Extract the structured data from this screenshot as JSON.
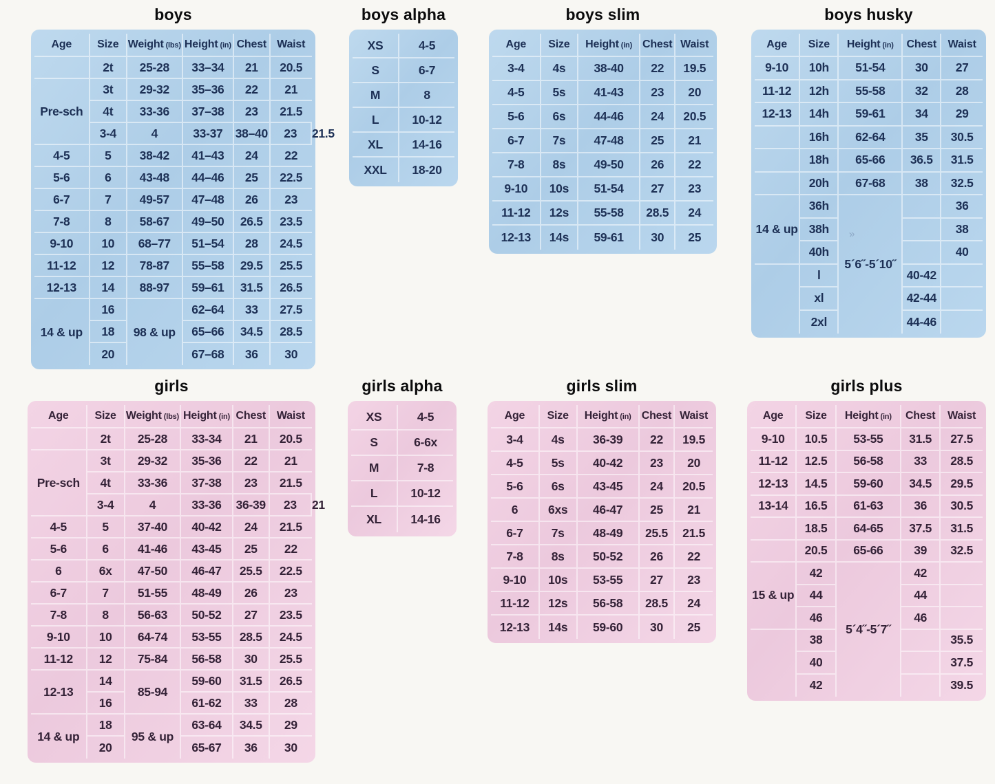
{
  "page": {
    "background": "#f8f7f3"
  },
  "colors": {
    "boys_fill": "#b4d2e9",
    "boys_text": "#1d3055",
    "girls_fill": "#efccdf",
    "girls_text": "#342237",
    "title_text": "#0b0b0c",
    "grid_line": "#ffffff"
  },
  "artifacts": {
    "pen_mark": "»"
  },
  "tables": {
    "boys": {
      "title": "boys",
      "theme": "boys",
      "columns": [
        {
          "label": "Age",
          "w": "20%"
        },
        {
          "label": "Size",
          "w": "13.5%"
        },
        {
          "label": "Weight",
          "unit": "(lbs)",
          "w": "20%"
        },
        {
          "label": "Height",
          "unit": "(in)",
          "w": "18.5%"
        },
        {
          "label": "Chest",
          "w": "13%"
        },
        {
          "label": "Waist",
          "w": "15%"
        }
      ],
      "rows": [
        [
          "",
          "2t",
          "25-28",
          "33–34",
          "21",
          "20.5"
        ],
        [
          {
            "t": "Pre-sch",
            "rs": 3
          },
          "3t",
          "29-32",
          "35–36",
          "22",
          "21"
        ],
        [
          "4t",
          "33-36",
          "37–38",
          "23",
          "21.5"
        ],
        [
          "3-4",
          "4",
          "33-37",
          "38–40",
          "23",
          "21.5"
        ],
        [
          "4-5",
          "5",
          "38-42",
          "41–43",
          "24",
          "22"
        ],
        [
          "5-6",
          "6",
          "43-48",
          "44–46",
          "25",
          "22.5"
        ],
        [
          "6-7",
          "7",
          "49-57",
          "47–48",
          "26",
          "23"
        ],
        [
          "7-8",
          "8",
          "58-67",
          "49–50",
          "26.5",
          "23.5"
        ],
        [
          "9-10",
          "10",
          "68–77",
          "51–54",
          "28",
          "24.5"
        ],
        [
          "11-12",
          "12",
          "78-87",
          "55–58",
          "29.5",
          "25.5"
        ],
        [
          "12-13",
          "14",
          "88-97",
          "59–61",
          "31.5",
          "26.5"
        ],
        [
          {
            "t": "14 & up",
            "rs": 3,
            "nbb": true
          },
          "16",
          {
            "t": "98 & up",
            "rs": 3,
            "nbb": true
          },
          "62–64",
          "33",
          "27.5"
        ],
        [
          "18",
          "65–66",
          "34.5",
          "28.5"
        ],
        [
          "20",
          "67–68",
          "36",
          "30"
        ]
      ]
    },
    "boys_alpha": {
      "title": "boys alpha",
      "theme": "boys",
      "columns": [
        {
          "w": "46%"
        },
        {
          "w": "54%"
        }
      ],
      "rows": [
        [
          "XS",
          "4-5"
        ],
        [
          "S",
          "6-7"
        ],
        [
          "M",
          "8"
        ],
        [
          "L",
          "10-12"
        ],
        [
          "XL",
          "14-16"
        ],
        [
          "XXL",
          "18-20"
        ]
      ]
    },
    "boys_slim": {
      "title": "boys slim",
      "theme": "boys",
      "columns": [
        {
          "label": "Age",
          "w": "22%"
        },
        {
          "label": "Size",
          "w": "17%"
        },
        {
          "label": "Height",
          "unit": "(in)",
          "w": "28%"
        },
        {
          "label": "Chest",
          "w": "16%"
        },
        {
          "label": "Waist",
          "w": "17%"
        }
      ],
      "rows": [
        [
          "3-4",
          "4s",
          "38-40",
          "22",
          "19.5"
        ],
        [
          "4-5",
          "5s",
          "41-43",
          "23",
          "20"
        ],
        [
          "5-6",
          "6s",
          "44-46",
          "24",
          "20.5"
        ],
        [
          "6-7",
          "7s",
          "47-48",
          "25",
          "21"
        ],
        [
          "7-8",
          "8s",
          "49-50",
          "26",
          "22"
        ],
        [
          "9-10",
          "10s",
          "51-54",
          "27",
          "23"
        ],
        [
          "11-12",
          "12s",
          "55-58",
          "28.5",
          "24"
        ],
        [
          "12-13",
          "14s",
          "59-61",
          "30",
          "25"
        ]
      ]
    },
    "boys_husky": {
      "title": "boys husky",
      "theme": "boys",
      "columns": [
        {
          "label": "Age",
          "w": "20%"
        },
        {
          "label": "Size",
          "w": "17%"
        },
        {
          "label": "Height",
          "unit": "(in)",
          "w": "28%"
        },
        {
          "label": "Chest",
          "w": "17%"
        },
        {
          "label": "Waist",
          "w": "18%"
        }
      ],
      "rows": [
        [
          "9-10",
          "10h",
          "51-54",
          "30",
          "27"
        ],
        [
          "11-12",
          "12h",
          "55-58",
          "32",
          "28"
        ],
        [
          "12-13",
          "14h",
          "59-61",
          "34",
          "29"
        ],
        [
          "",
          "16h",
          "62-64",
          "35",
          "30.5"
        ],
        [
          "",
          "18h",
          "65-66",
          "36.5",
          "31.5"
        ],
        [
          "",
          "20h",
          "67-68",
          "38",
          "32.5"
        ],
        [
          {
            "t": "14 & up",
            "rs": 3
          },
          "36h",
          {
            "t": "5´6˝-5´10˝",
            "rs": 6,
            "hs": true,
            "mark": true,
            "nbb": true
          },
          "",
          "36"
        ],
        [
          "38h",
          "",
          "38"
        ],
        [
          "40h",
          "",
          "40"
        ],
        [
          {
            "t": "",
            "rs": 3,
            "nbb": true
          },
          "l",
          "40-42",
          ""
        ],
        [
          "xl",
          "42-44",
          ""
        ],
        [
          "2xl",
          "44-46",
          ""
        ]
      ]
    },
    "girls": {
      "title": "girls",
      "theme": "girls",
      "columns": [
        {
          "label": "Age",
          "w": "20%"
        },
        {
          "label": "Size",
          "w": "13.5%"
        },
        {
          "label": "Weight",
          "unit": "(lbs)",
          "w": "20%"
        },
        {
          "label": "Height",
          "unit": "(in)",
          "w": "18.5%"
        },
        {
          "label": "Chest",
          "w": "13%"
        },
        {
          "label": "Waist",
          "w": "15%"
        }
      ],
      "rows": [
        [
          "",
          "2t",
          "25-28",
          "33-34",
          "21",
          "20.5"
        ],
        [
          {
            "t": "Pre-sch",
            "rs": 3
          },
          "3t",
          "29-32",
          "35-36",
          "22",
          "21"
        ],
        [
          "4t",
          "33-36",
          "37-38",
          "23",
          "21.5"
        ],
        [
          "3-4",
          "4",
          "33-36",
          "36-39",
          "23",
          "21"
        ],
        [
          "4-5",
          "5",
          "37-40",
          "40-42",
          "24",
          "21.5"
        ],
        [
          "5-6",
          "6",
          "41-46",
          "43-45",
          "25",
          "22"
        ],
        [
          "6",
          "6x",
          "47-50",
          "46-47",
          "25.5",
          "22.5"
        ],
        [
          "6-7",
          "7",
          "51-55",
          "48-49",
          "26",
          "23"
        ],
        [
          "7-8",
          "8",
          "56-63",
          "50-52",
          "27",
          "23.5"
        ],
        [
          "9-10",
          "10",
          "64-74",
          "53-55",
          "28.5",
          "24.5"
        ],
        [
          "11-12",
          "12",
          "75-84",
          "56-58",
          "30",
          "25.5"
        ],
        [
          {
            "t": "12-13",
            "rs": 2
          },
          "14",
          {
            "t": "85-94",
            "rs": 2
          },
          "59-60",
          "31.5",
          "26.5"
        ],
        [
          "16",
          "61-62",
          "33",
          "28"
        ],
        [
          {
            "t": "14 & up",
            "rs": 2,
            "nbb": true
          },
          "18",
          {
            "t": "95 & up",
            "rs": 2,
            "nbb": true
          },
          "63-64",
          "34.5",
          "29"
        ],
        [
          "20",
          "65-67",
          "36",
          "30"
        ]
      ]
    },
    "girls_alpha": {
      "title": "girls alpha",
      "theme": "girls",
      "columns": [
        {
          "w": "46%"
        },
        {
          "w": "54%"
        }
      ],
      "rows": [
        [
          "XS",
          "4-5"
        ],
        [
          "S",
          "6-6x"
        ],
        [
          "M",
          "7-8"
        ],
        [
          "L",
          "10-12"
        ],
        [
          "XL",
          "14-16"
        ]
      ]
    },
    "girls_slim": {
      "title": "girls slim",
      "theme": "girls",
      "columns": [
        {
          "label": "Age",
          "w": "22%"
        },
        {
          "label": "Size",
          "w": "17%"
        },
        {
          "label": "Height",
          "unit": "(in)",
          "w": "28%"
        },
        {
          "label": "Chest",
          "w": "16%"
        },
        {
          "label": "Waist",
          "w": "17%"
        }
      ],
      "rows": [
        [
          "3-4",
          "4s",
          "36-39",
          "22",
          "19.5"
        ],
        [
          "4-5",
          "5s",
          "40-42",
          "23",
          "20"
        ],
        [
          "5-6",
          "6s",
          "43-45",
          "24",
          "20.5"
        ],
        [
          "6",
          "6xs",
          "46-47",
          "25",
          "21"
        ],
        [
          "6-7",
          "7s",
          "48-49",
          "25.5",
          "21.5"
        ],
        [
          "7-8",
          "8s",
          "50-52",
          "26",
          "22"
        ],
        [
          "9-10",
          "10s",
          "53-55",
          "27",
          "23"
        ],
        [
          "11-12",
          "12s",
          "56-58",
          "28.5",
          "24"
        ],
        [
          "12-13",
          "14s",
          "59-60",
          "30",
          "25"
        ]
      ]
    },
    "girls_plus": {
      "title": "girls plus",
      "theme": "girls",
      "columns": [
        {
          "label": "Age",
          "w": "20%"
        },
        {
          "label": "Size",
          "w": "17%"
        },
        {
          "label": "Height",
          "unit": "(in)",
          "w": "28%"
        },
        {
          "label": "Chest",
          "w": "17%"
        },
        {
          "label": "Waist",
          "w": "18%"
        }
      ],
      "rows": [
        [
          "9-10",
          "10.5",
          "53-55",
          "31.5",
          "27.5"
        ],
        [
          "11-12",
          "12.5",
          "56-58",
          "33",
          "28.5"
        ],
        [
          "12-13",
          "14.5",
          "59-60",
          "34.5",
          "29.5"
        ],
        [
          "13-14",
          "16.5",
          "61-63",
          "36",
          "30.5"
        ],
        [
          "",
          "18.5",
          "64-65",
          "37.5",
          "31.5"
        ],
        [
          "",
          "20.5",
          "65-66",
          "39",
          "32.5"
        ],
        [
          {
            "t": "15 & up",
            "rs": 3
          },
          "42",
          {
            "t": "5´4˝-5´7˝",
            "rs": 6,
            "hs": true,
            "nbb": true
          },
          "42",
          ""
        ],
        [
          "44",
          "44",
          ""
        ],
        [
          "46",
          "46",
          ""
        ],
        [
          {
            "t": "",
            "rs": 3,
            "nbb": true
          },
          "38",
          "",
          "35.5"
        ],
        [
          "40",
          "",
          "37.5"
        ],
        [
          "42",
          "",
          "39.5"
        ]
      ]
    }
  }
}
